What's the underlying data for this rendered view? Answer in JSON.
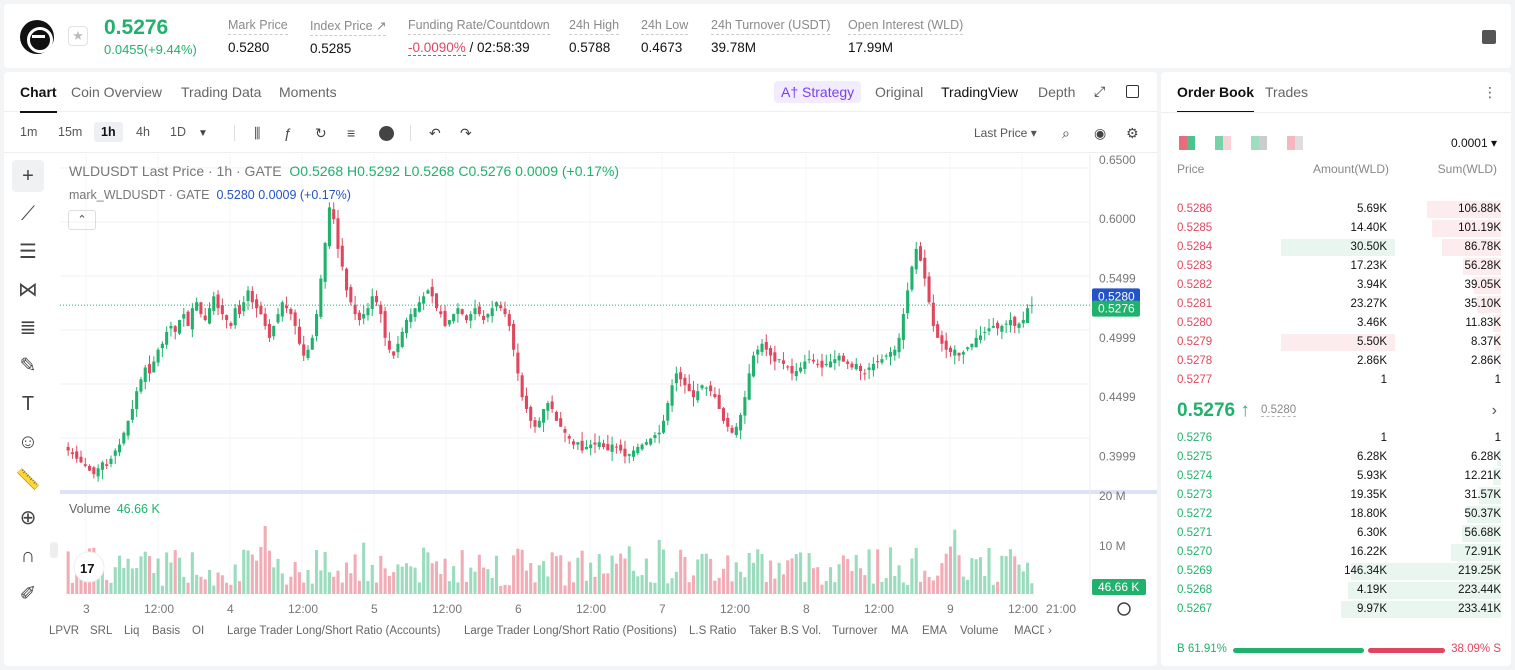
{
  "header": {
    "price": "0.5276",
    "change": "0.0455(+9.44%)",
    "stats": [
      {
        "label": "Mark Price",
        "value": "0.5280"
      },
      {
        "label": "Index Price ↗",
        "value": "0.5285"
      },
      {
        "label": "Funding Rate/Countdown",
        "value_neg": "-0.0090%",
        "value": " / 02:58:39"
      },
      {
        "label": "24h High",
        "value": "0.5788"
      },
      {
        "label": "24h Low",
        "value": "0.4673"
      },
      {
        "label": "24h Turnover (USDT)",
        "value": "39.78M"
      },
      {
        "label": "Open Interest (WLD)",
        "value": "17.99M"
      }
    ]
  },
  "chart_tabs": [
    "Chart",
    "Coin Overview",
    "Trading Data",
    "Moments"
  ],
  "view_tabs": {
    "strategy": "A† Strategy",
    "original": "Original",
    "tradingview": "TradingView",
    "depth": "Depth"
  },
  "timeframes": [
    "1m",
    "15m",
    "1h",
    "4h",
    "1D"
  ],
  "last_price_select": "Last Price ▾",
  "legend": {
    "symbol": "WLDUSDT Last Price · 1h · GATE",
    "ohlc": "O0.5268 H0.5292 L0.5268 C0.5276 0.0009 (+0.17%)",
    "mark": "mark_WLDUSDT · GATE",
    "mark_vals": "0.5280 0.0009 (+0.17%)"
  },
  "volume_legend": {
    "label": "Volume",
    "value": "46.66 K"
  },
  "indicators": [
    "LPVR",
    "SRL",
    "Liq",
    "Basis",
    "OI",
    "Large Trader Long/Short Ratio (Accounts)",
    "Large Trader Long/Short Ratio (Positions)",
    "L.S Ratio",
    "Taker B.S Vol.",
    "Turnover",
    "MA",
    "EMA",
    "Volume",
    "MACD"
  ],
  "chart_data": {
    "type": "candlestick",
    "y_axis_ticks": [
      "0.6500",
      "0.6000",
      "0.5499",
      "0.4999",
      "0.4499",
      "0.3999"
    ],
    "volume_axis_ticks": [
      "20 M",
      "10 M"
    ],
    "x_axis_ticks": [
      "3",
      "12:00",
      "4",
      "12:00",
      "5",
      "12:00",
      "6",
      "12:00",
      "7",
      "12:00",
      "8",
      "12:00",
      "9",
      "12:00",
      "21:00"
    ],
    "price_tags": {
      "mark": "0.5280",
      "last": "0.5276",
      "volume": "46.66 K"
    },
    "ylim": [
      0.37,
      0.655
    ],
    "close": [
      0.405,
      0.402,
      0.398,
      0.395,
      0.392,
      0.388,
      0.385,
      0.39,
      0.395,
      0.392,
      0.398,
      0.405,
      0.41,
      0.42,
      0.43,
      0.44,
      0.455,
      0.465,
      0.475,
      0.47,
      0.48,
      0.49,
      0.495,
      0.505,
      0.51,
      0.505,
      0.515,
      0.52,
      0.51,
      0.525,
      0.53,
      0.52,
      0.515,
      0.525,
      0.535,
      0.525,
      0.52,
      0.515,
      0.51,
      0.525,
      0.52,
      0.53,
      0.54,
      0.53,
      0.525,
      0.52,
      0.51,
      0.5,
      0.51,
      0.52,
      0.53,
      0.525,
      0.52,
      0.51,
      0.495,
      0.485,
      0.49,
      0.5,
      0.52,
      0.55,
      0.58,
      0.61,
      0.6,
      0.575,
      0.56,
      0.54,
      0.53,
      0.52,
      0.515,
      0.52,
      0.525,
      0.535,
      0.53,
      0.52,
      0.5,
      0.49,
      0.485,
      0.495,
      0.505,
      0.515,
      0.52,
      0.525,
      0.53,
      0.535,
      0.54,
      0.535,
      0.525,
      0.52,
      0.51,
      0.515,
      0.52,
      0.525,
      0.52,
      0.515,
      0.52,
      0.525,
      0.52,
      0.515,
      0.52,
      0.525,
      0.53,
      0.525,
      0.52,
      0.51,
      0.49,
      0.47,
      0.45,
      0.44,
      0.43,
      0.425,
      0.43,
      0.44,
      0.445,
      0.44,
      0.43,
      0.425,
      0.42,
      0.415,
      0.41,
      0.412,
      0.405,
      0.408,
      0.41,
      0.41,
      0.412,
      0.408,
      0.405,
      0.41,
      0.408,
      0.405,
      0.4,
      0.402,
      0.405,
      0.408,
      0.41,
      0.412,
      0.415,
      0.418,
      0.42,
      0.43,
      0.445,
      0.46,
      0.47,
      0.465,
      0.46,
      0.455,
      0.45,
      0.455,
      0.46,
      0.458,
      0.455,
      0.45,
      0.44,
      0.43,
      0.425,
      0.42,
      0.425,
      0.435,
      0.45,
      0.47,
      0.485,
      0.49,
      0.495,
      0.49,
      0.485,
      0.48,
      0.482,
      0.478,
      0.475,
      0.47,
      0.472,
      0.475,
      0.48,
      0.482,
      0.48,
      0.478,
      0.475,
      0.478,
      0.48,
      0.482,
      0.485,
      0.48,
      0.478,
      0.475,
      0.478,
      0.472,
      0.47,
      0.475,
      0.478,
      0.48,
      0.482,
      0.485,
      0.488,
      0.49,
      0.5,
      0.52,
      0.54,
      0.56,
      0.575,
      0.565,
      0.55,
      0.53,
      0.51,
      0.5,
      0.495,
      0.49,
      0.488,
      0.49,
      0.485,
      0.488,
      0.492,
      0.495,
      0.5,
      0.502,
      0.505,
      0.508,
      0.51,
      0.508,
      0.51,
      0.512,
      0.515,
      0.51,
      0.512,
      0.515,
      0.525,
      0.5276
    ]
  },
  "order_book": {
    "tabs": [
      "Order Book",
      "Trades"
    ],
    "precision": "0.0001 ▾",
    "headers": [
      "Price",
      "Amount(WLD)",
      "Sum(WLD)"
    ],
    "asks": [
      {
        "p": "0.5286",
        "a": "5.69K",
        "s": "106.88K",
        "pct": 0.46,
        "apct": 0
      },
      {
        "p": "0.5285",
        "a": "14.40K",
        "s": "101.19K",
        "pct": 0.43,
        "apct": 0
      },
      {
        "p": "0.5284",
        "a": "30.50K",
        "s": "86.78K",
        "pct": 0.37,
        "apct": 0.52
      },
      {
        "p": "0.5283",
        "a": "17.23K",
        "s": "56.28K",
        "pct": 0.24,
        "apct": 0
      },
      {
        "p": "0.5282",
        "a": "3.94K",
        "s": "39.05K",
        "pct": 0.17,
        "apct": 0
      },
      {
        "p": "0.5281",
        "a": "23.27K",
        "s": "35.10K",
        "pct": 0.15,
        "apct": 0
      },
      {
        "p": "0.5280",
        "a": "3.46K",
        "s": "11.83K",
        "pct": 0.05,
        "apct": 0
      },
      {
        "p": "0.5279",
        "a": "5.50K",
        "s": "8.37K",
        "pct": 0.036,
        "apct": 0.52
      },
      {
        "p": "0.5278",
        "a": "2.86K",
        "s": "2.86K",
        "pct": 0.012,
        "apct": 0
      },
      {
        "p": "0.5277",
        "a": "1",
        "s": "1",
        "pct": 0,
        "apct": 0
      }
    ],
    "mid": {
      "price": "0.5276 ↑",
      "mark": "0.5280"
    },
    "bids": [
      {
        "p": "0.5276",
        "a": "1",
        "s": "1",
        "pct": 0
      },
      {
        "p": "0.5275",
        "a": "6.28K",
        "s": "6.28K",
        "pct": 0.027
      },
      {
        "p": "0.5274",
        "a": "5.93K",
        "s": "12.21K",
        "pct": 0.052
      },
      {
        "p": "0.5273",
        "a": "19.35K",
        "s": "31.57K",
        "pct": 0.135
      },
      {
        "p": "0.5272",
        "a": "18.80K",
        "s": "50.37K",
        "pct": 0.215
      },
      {
        "p": "0.5271",
        "a": "6.30K",
        "s": "56.68K",
        "pct": 0.243
      },
      {
        "p": "0.5270",
        "a": "16.22K",
        "s": "72.91K",
        "pct": 0.312
      },
      {
        "p": "0.5269",
        "a": "146.34K",
        "s": "219.25K",
        "pct": 0.94
      },
      {
        "p": "0.5268",
        "a": "4.19K",
        "s": "223.44K",
        "pct": 0.957
      },
      {
        "p": "0.5267",
        "a": "9.97K",
        "s": "233.41K",
        "pct": 1.0
      }
    ],
    "ratio": {
      "buy": "B 61.91%",
      "sell": "38.09% S",
      "buy_frac": 0.6191
    }
  },
  "colors": {
    "up": "#20b26c",
    "down": "#e0475e",
    "mark_tag": "#2453c7"
  }
}
